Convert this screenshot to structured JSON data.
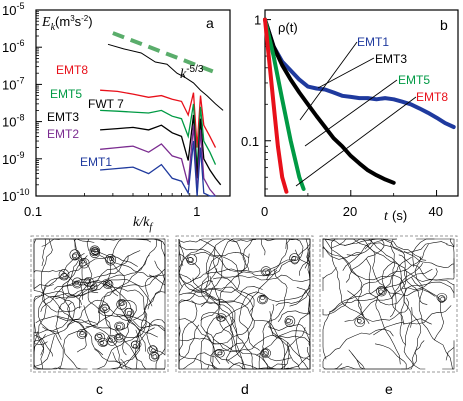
{
  "panels": {
    "a": {
      "letter": "a",
      "ylabel_main": "E",
      "ylabel_sub": "k",
      "ylabel_unit": "(m",
      "ylabel_unit_sup": "3",
      "ylabel_unit_mid": "s",
      "ylabel_unit_sup2": "-2",
      "ylabel_unit_end": ")",
      "xlabel_k": "k/k",
      "xlabel_sub": "f",
      "slope_base": "k",
      "slope_exp": "-5/3",
      "y_ticks": [
        {
          "base": "10",
          "exp": "-5"
        },
        {
          "base": "10",
          "exp": "-6"
        },
        {
          "base": "10",
          "exp": "-7"
        },
        {
          "base": "10",
          "exp": "-8"
        },
        {
          "base": "10",
          "exp": "-9"
        },
        {
          "base": "10",
          "exp": "-10"
        }
      ],
      "x_ticks": [
        "0.1",
        "1"
      ]
    },
    "b": {
      "letter": "b",
      "ylabel": "ρ(t)",
      "xlabel": "t",
      "xunit": "(s)",
      "y_ticks": [
        "1",
        "0.1"
      ],
      "x_ticks": [
        "0",
        "20",
        "40"
      ]
    },
    "bottom_labels": [
      "c",
      "d",
      "e"
    ]
  },
  "chart_data": [
    {
      "type": "line",
      "panel": "a",
      "scale": {
        "x": "log",
        "y": "log"
      },
      "xlim": [
        0.1,
        1.6
      ],
      "ylim": [
        1e-10,
        1e-05
      ],
      "series": [
        {
          "name": "FWT 7",
          "color": "#000000",
          "x": [
            0.28,
            0.35,
            0.45,
            0.55,
            0.65,
            0.75,
            0.85,
            0.95,
            1.05,
            1.15,
            1.3,
            1.45
          ],
          "y": [
            1.2e-06,
            9e-07,
            7e-07,
            4e-07,
            3.5e-07,
            2e-07,
            1.5e-07,
            1.1e-07,
            7e-08,
            5e-08,
            3e-08,
            2e-08
          ]
        },
        {
          "name": "EMT8",
          "color": "#e8101a",
          "x": [
            0.25,
            0.32,
            0.4,
            0.5,
            0.6,
            0.7,
            0.8,
            0.88,
            0.95,
            1.0,
            1.05,
            1.1,
            1.2,
            1.3
          ],
          "y": [
            7e-08,
            6.5e-08,
            5.5e-08,
            4.5e-08,
            5e-08,
            4e-08,
            3.5e-08,
            1.5e-08,
            6e-08,
            2e-09,
            5e-08,
            8e-09,
            4e-09,
            2e-09
          ]
        },
        {
          "name": "EMT5",
          "color": "#009a44",
          "x": [
            0.25,
            0.32,
            0.4,
            0.5,
            0.6,
            0.7,
            0.8,
            0.88,
            0.95,
            1.0,
            1.05,
            1.1,
            1.2,
            1.3
          ],
          "y": [
            2e-08,
            1.9e-08,
            1.8e-08,
            1.7e-08,
            2e-08,
            1.4e-08,
            1.2e-08,
            4e-09,
            3e-08,
            5e-10,
            2.5e-08,
            3e-09,
            1.5e-09,
            7e-10
          ]
        },
        {
          "name": "EMT3",
          "color": "#000000",
          "x": [
            0.25,
            0.32,
            0.4,
            0.5,
            0.6,
            0.7,
            0.8,
            0.88,
            0.95,
            1.0,
            1.05,
            1.1,
            1.2,
            1.3,
            1.4
          ],
          "y": [
            6e-09,
            6.5e-09,
            7e-09,
            6e-09,
            8e-09,
            5e-09,
            4e-09,
            9e-10,
            1.5e-08,
            3e-10,
            1.2e-08,
            1e-09,
            5e-10,
            3e-10,
            2e-10
          ]
        },
        {
          "name": "EMT2",
          "color": "#7b2c90",
          "x": [
            0.25,
            0.32,
            0.4,
            0.5,
            0.6,
            0.7,
            0.8,
            0.88,
            0.95,
            1.0,
            1.05,
            1.1,
            1.2,
            1.3
          ],
          "y": [
            1.8e-09,
            2e-09,
            2.2e-09,
            1.5e-09,
            2.5e-09,
            1.2e-09,
            1e-09,
            2e-10,
            8e-09,
            1.2e-10,
            6e-09,
            3e-10,
            1.5e-10,
            1e-10
          ]
        },
        {
          "name": "EMT1",
          "color": "#1f3a9e",
          "x": [
            0.25,
            0.32,
            0.4,
            0.5,
            0.6,
            0.7,
            0.8,
            0.88,
            0.95,
            1.0,
            1.05,
            1.1,
            1.2,
            1.3
          ],
          "y": [
            5e-10,
            5.5e-10,
            6e-10,
            4e-10,
            7e-10,
            3e-10,
            2.5e-10,
            1.2e-10,
            3e-09,
            1e-10,
            2e-09,
            1.2e-10,
            1e-10,
            1e-10
          ]
        }
      ],
      "reference_line": {
        "slope": "-5/3",
        "color": "#5aad6b",
        "style": "dashed",
        "x": [
          0.3,
          1.3
        ],
        "y": [
          2.4e-06,
          2.1e-07
        ]
      }
    },
    {
      "type": "line",
      "panel": "b",
      "scale": {
        "x": "linear",
        "y": "log"
      },
      "xlim": [
        0,
        45
      ],
      "ylim": [
        0.035,
        1.2
      ],
      "series": [
        {
          "name": "EMT1",
          "color": "#1f3a9e",
          "x": [
            0,
            2,
            4,
            6,
            8,
            10,
            12,
            14,
            16,
            18,
            20,
            22,
            24,
            26,
            28,
            30,
            32,
            34,
            36,
            38,
            40,
            42,
            44
          ],
          "y": [
            1.0,
            0.6,
            0.45,
            0.38,
            0.32,
            0.28,
            0.27,
            0.265,
            0.25,
            0.235,
            0.23,
            0.225,
            0.225,
            0.22,
            0.225,
            0.22,
            0.21,
            0.2,
            0.185,
            0.17,
            0.155,
            0.14,
            0.13
          ]
        },
        {
          "name": "EMT3",
          "color": "#000000",
          "x": [
            0,
            2,
            4,
            6,
            8,
            10,
            12,
            14,
            16,
            18,
            20,
            22,
            24,
            26,
            28,
            30
          ],
          "y": [
            1.0,
            0.6,
            0.42,
            0.32,
            0.25,
            0.2,
            0.16,
            0.13,
            0.105,
            0.09,
            0.075,
            0.065,
            0.057,
            0.052,
            0.048,
            0.045
          ]
        },
        {
          "name": "EMT5",
          "color": "#009a44",
          "x": [
            0,
            2,
            4,
            6,
            8,
            9
          ],
          "y": [
            1.0,
            0.5,
            0.22,
            0.1,
            0.05,
            0.04
          ]
        },
        {
          "name": "EMT8",
          "color": "#e8101a",
          "x": [
            0,
            1,
            2,
            3,
            4,
            5
          ],
          "y": [
            1.0,
            0.45,
            0.2,
            0.09,
            0.05,
            0.038
          ]
        }
      ]
    }
  ]
}
